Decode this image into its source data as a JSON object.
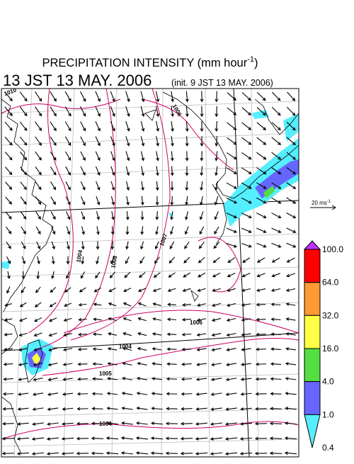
{
  "header": {
    "title": "PRECIPITATION INTENSITY (mm hour",
    "title_sup": "-1",
    "title_end": ")",
    "subtitle": "13 JST 13 MAY. 2006",
    "init": "(init. 9 JST 13 MAY. 2006)"
  },
  "wind_scale": {
    "label": "20 ms",
    "label_sup": "-1"
  },
  "colorbar": {
    "levels": [
      {
        "label": "100.0",
        "color": "#ff0000"
      },
      {
        "label": "64.0",
        "color": "#ff9933"
      },
      {
        "label": "32.0",
        "color": "#ffff44"
      },
      {
        "label": "16.0",
        "color": "#55dd44"
      },
      {
        "label": "4.0",
        "color": "#6666ff"
      },
      {
        "label": "1.0",
        "color": "#55eeff"
      },
      {
        "label": "0.4",
        "color": "#ffffff"
      }
    ],
    "top_color": "#bb33ff"
  },
  "contour_labels": [
    "1010",
    "1006",
    "1004",
    "1008",
    "1007",
    "1006",
    "1004",
    "1005",
    "1004"
  ]
}
